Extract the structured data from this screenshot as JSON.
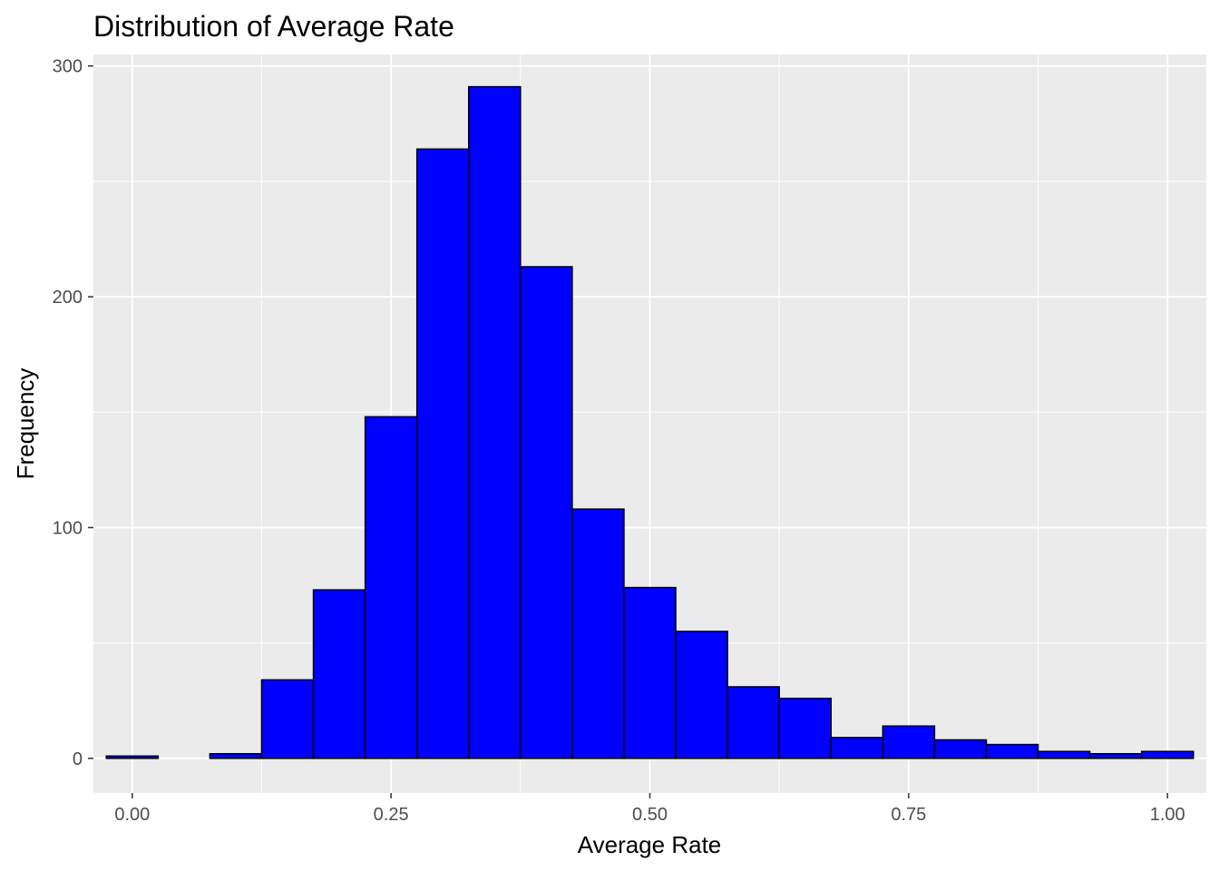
{
  "chart_data": {
    "type": "bar",
    "title": "Distribution of Average Rate",
    "xlabel": "Average Rate",
    "ylabel": "Frequency",
    "xlim": [
      -0.0375,
      1.0375
    ],
    "ylim": [
      -15,
      305
    ],
    "bin_width": 0.05,
    "bin_centers": [
      0.0,
      0.05,
      0.1,
      0.15,
      0.2,
      0.25,
      0.3,
      0.35,
      0.4,
      0.45,
      0.5,
      0.55,
      0.6,
      0.65,
      0.7,
      0.75,
      0.8,
      0.85,
      0.9,
      0.95,
      1.0
    ],
    "values": [
      1,
      0,
      2,
      34,
      73,
      148,
      264,
      291,
      213,
      108,
      74,
      55,
      31,
      26,
      9,
      14,
      8,
      6,
      3,
      2,
      3
    ],
    "x_ticks": [
      0.0,
      0.25,
      0.5,
      0.75,
      1.0
    ],
    "x_tick_labels": [
      "0.00",
      "0.25",
      "0.50",
      "0.75",
      "1.00"
    ],
    "y_ticks": [
      0,
      100,
      200,
      300
    ],
    "y_tick_labels": [
      "0",
      "100",
      "200",
      "300"
    ],
    "colors": {
      "panel_background": "#ebebeb",
      "grid": "#ffffff",
      "bar_fill": "#0000ff",
      "bar_outline": "#000000",
      "tick_text": "#4d4d4d",
      "tick_mark": "#333333"
    }
  }
}
